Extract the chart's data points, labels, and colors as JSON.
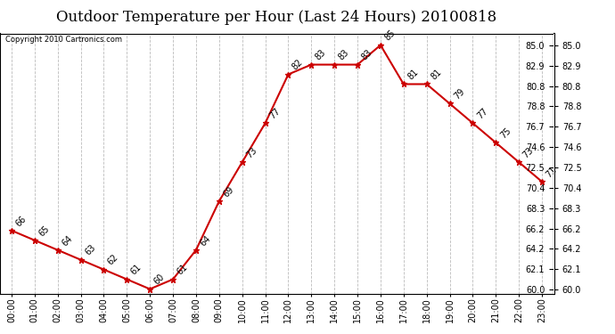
{
  "title": "Outdoor Temperature per Hour (Last 24 Hours) 20100818",
  "copyright": "Copyright 2010 Cartronics.com",
  "hours": [
    "00:00",
    "01:00",
    "02:00",
    "03:00",
    "04:00",
    "05:00",
    "06:00",
    "07:00",
    "08:00",
    "09:00",
    "10:00",
    "11:00",
    "12:00",
    "13:00",
    "14:00",
    "15:00",
    "16:00",
    "17:00",
    "18:00",
    "19:00",
    "20:00",
    "21:00",
    "22:00",
    "23:00"
  ],
  "temps": [
    66,
    65,
    64,
    63,
    62,
    61,
    60,
    61,
    64,
    69,
    73,
    77,
    82,
    83,
    83,
    83,
    85,
    81,
    81,
    79,
    77,
    75,
    73,
    71
  ],
  "ylim_min": 59.5,
  "ylim_max": 86.2,
  "yticks": [
    60.0,
    62.1,
    64.2,
    66.2,
    68.3,
    70.4,
    72.5,
    74.6,
    76.7,
    78.8,
    80.8,
    82.9,
    85.0
  ],
  "line_color": "#cc0000",
  "marker": "*",
  "bg_color": "#ffffff",
  "grid_color": "#bbbbbb",
  "label_fontsize": 7,
  "title_fontsize": 12,
  "tick_fontsize": 7,
  "copyright_fontsize": 6
}
